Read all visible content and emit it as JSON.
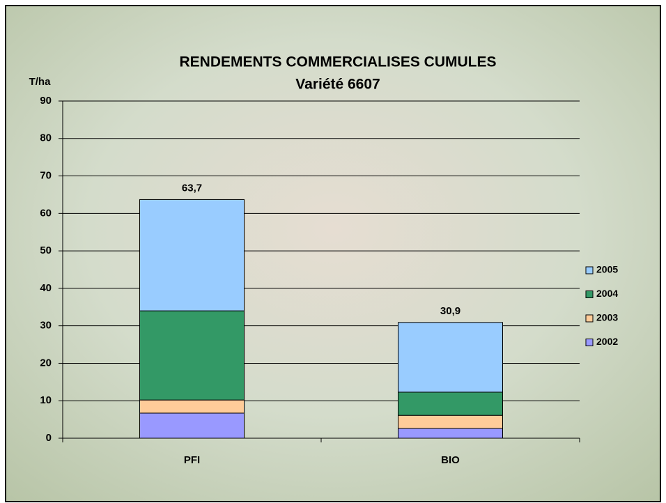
{
  "chart_data": {
    "type": "stacked_bar",
    "title": "RENDEMENTS COMMERCIALISES CUMULES",
    "subtitle": "Variété 6607",
    "y_label": "T/ha",
    "categories": [
      "PFI",
      "BIO"
    ],
    "series": [
      {
        "name": "2002",
        "color": "#9999ff",
        "values": [
          6.7,
          2.6
        ]
      },
      {
        "name": "2003",
        "color": "#ffcc99",
        "values": [
          3.5,
          3.5
        ]
      },
      {
        "name": "2004",
        "color": "#339966",
        "values": [
          23.8,
          6.2
        ]
      },
      {
        "name": "2005",
        "color": "#99ccff",
        "values": [
          29.7,
          18.6
        ]
      }
    ],
    "totals": [
      63.7,
      30.9
    ],
    "total_labels": [
      "63,7",
      "30,9"
    ],
    "ylim": [
      0,
      90
    ],
    "yticks": [
      0,
      10,
      20,
      30,
      40,
      50,
      60,
      70,
      80,
      90
    ],
    "grid": true,
    "legend": "right"
  }
}
